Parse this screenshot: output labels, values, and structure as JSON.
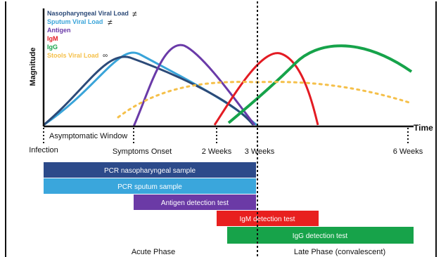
{
  "axes": {
    "y_label": "Magnitude",
    "x_label": "Time"
  },
  "legend": [
    {
      "label": "Nasopharyngeal Viral Load",
      "color": "#2c4a78",
      "symbol": "≠"
    },
    {
      "label": "Sputum Viral Load",
      "color": "#39a4d9",
      "symbol": "≠"
    },
    {
      "label": "Antigen",
      "color": "#6a3aa8",
      "symbol": ""
    },
    {
      "label": "IgM",
      "color": "#e31b23",
      "symbol": ""
    },
    {
      "label": "IgG",
      "color": "#16a34a",
      "symbol": ""
    },
    {
      "label": "Stools Viral Load",
      "color": "#f5c04a",
      "symbol": "∞"
    }
  ],
  "timeline": {
    "asymptomatic": "Asymptomatic Window",
    "ticks": [
      {
        "label": "Infection",
        "name": "tick-infection"
      },
      {
        "label": "Symptoms Onset",
        "name": "tick-symptoms-onset"
      },
      {
        "label": "2 Weeks",
        "name": "tick-2-weeks"
      },
      {
        "label": "3 Weeks",
        "name": "tick-3-weeks"
      },
      {
        "label": "6 Weeks",
        "name": "tick-6-weeks"
      }
    ]
  },
  "tests": [
    {
      "label": "PCR nasopharyngeal sample",
      "color": "#2c4a8a"
    },
    {
      "label": "PCR sputum sample",
      "color": "#3aa6dc"
    },
    {
      "label": "Antigen detection test",
      "color": "#6b3aa6"
    },
    {
      "label": "IgM detection test",
      "color": "#e8201f"
    },
    {
      "label": "IgG detection test",
      "color": "#17a34a"
    }
  ],
  "phases": {
    "acute": "Acute Phase",
    "late": "Late Phase (convalescent)"
  }
}
